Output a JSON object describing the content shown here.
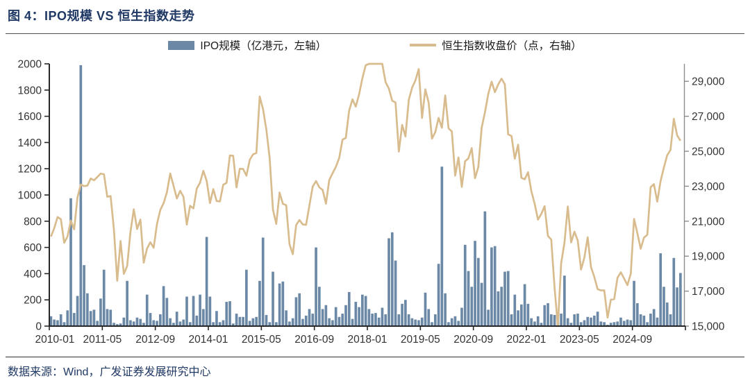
{
  "header": {
    "title": "图 4：IPO规模 VS 恒生指数走势"
  },
  "legend": {
    "bar_label": "IPO规模（亿港元，左轴）",
    "line_label": "恒生指数收盘价（点，右轴）"
  },
  "footer": {
    "source": "数据来源：Wind，广发证券发展研究中心"
  },
  "colors": {
    "bar": "#6B89A6",
    "line": "#D9BC8D",
    "title": "#1F3864",
    "axis_text": "#333333",
    "dark_axis_line": "#262626",
    "right_axis_line": "#8C8C8C"
  },
  "chart_data": {
    "type": "combo",
    "title": "图 4：IPO规模 VS 恒生指数走势",
    "start_month": "2010-01",
    "end_month": "2025-11",
    "x_tick_labels": [
      "2010-01",
      "2011-05",
      "2012-09",
      "2014-01",
      "2015-05",
      "2016-09",
      "2018-01",
      "2019-05",
      "2020-09",
      "2022-01",
      "2023-05",
      "2024-09"
    ],
    "x_label_interval_months": 16,
    "left_axis": {
      "title": "IPO规模（亿港元）",
      "min": 0,
      "max": 2000,
      "step": 200,
      "tick_labels": [
        "0",
        "200",
        "400",
        "600",
        "800",
        "1000",
        "1200",
        "1400",
        "1600",
        "1800",
        "2000"
      ]
    },
    "right_axis": {
      "title": "恒生指数收盘价（点）",
      "min": 15000,
      "max": 30000,
      "step": 2000,
      "tick_labels": [
        "15,000",
        "17,000",
        "19,000",
        "21,000",
        "23,000",
        "25,000",
        "27,000",
        "29,000"
      ]
    },
    "grid": false,
    "legend_position": "top",
    "series": [
      {
        "name": "IPO规模（亿港元，左轴）",
        "type": "bar",
        "axis": "left",
        "values": [
          75,
          50,
          45,
          90,
          30,
          120,
          975,
          100,
          230,
          1990,
          465,
          250,
          115,
          125,
          40,
          210,
          430,
          130,
          125,
          25,
          15,
          20,
          65,
          345,
          45,
          35,
          65,
          55,
          25,
          240,
          100,
          45,
          40,
          90,
          305,
          215,
          60,
          25,
          110,
          35,
          50,
          225,
          30,
          230,
          80,
          240,
          130,
          680,
          225,
          30,
          115,
          30,
          45,
          185,
          190,
          20,
          95,
          70,
          70,
          430,
          40,
          60,
          70,
          345,
          675,
          85,
          30,
          415,
          30,
          325,
          340,
          120,
          35,
          60,
          220,
          250,
          55,
          80,
          130,
          95,
          600,
          300,
          130,
          160,
          60,
          45,
          145,
          70,
          95,
          160,
          260,
          55,
          185,
          145,
          240,
          230,
          130,
          95,
          100,
          65,
          140,
          90,
          670,
          715,
          500,
          90,
          170,
          200,
          90,
          60,
          50,
          45,
          65,
          255,
          130,
          30,
          90,
          475,
          1216,
          250,
          30,
          60,
          75,
          40,
          140,
          620,
          420,
          300,
          650,
          520,
          330,
          875,
          125,
          600,
          610,
          265,
          300,
          415,
          420,
          90,
          240,
          120,
          165,
          320,
          170,
          60,
          35,
          75,
          25,
          160,
          175,
          90,
          85,
          35,
          95,
          385,
          60,
          25,
          90,
          95,
          30,
          45,
          70,
          65,
          80,
          110,
          35,
          30,
          10,
          25,
          30,
          35,
          65,
          40,
          50,
          45,
          345,
          175,
          90,
          80,
          30,
          95,
          130,
          65,
          555,
          300,
          180,
          90,
          520,
          295,
          405
        ]
      },
      {
        "name": "恒生指数收盘价（点，右轴）",
        "type": "line",
        "axis": "right",
        "values": [
          20122,
          20608,
          21239,
          21109,
          19765,
          20129,
          21030,
          20537,
          22358,
          23096,
          23007,
          23035,
          23447,
          23338,
          23528,
          23721,
          23684,
          22398,
          22440,
          20535,
          17592,
          19865,
          17989,
          18434,
          20390,
          21680,
          20556,
          21094,
          18629,
          19441,
          19796,
          19483,
          20840,
          21641,
          22030,
          22657,
          23729,
          23020,
          22300,
          22737,
          22392,
          20803,
          21884,
          21731,
          22860,
          23206,
          23881,
          23306,
          22035,
          22837,
          22151,
          22134,
          23082,
          23191,
          24757,
          24742,
          22933,
          23998,
          23987,
          23605,
          24507,
          24823,
          24901,
          28133,
          27424,
          26250,
          24636,
          21671,
          20846,
          22640,
          21996,
          21914,
          19683,
          19112,
          20777,
          21067,
          20815,
          20794,
          21891,
          22977,
          23297,
          22935,
          22790,
          22001,
          23361,
          23741,
          24112,
          24615,
          25661,
          25765,
          27324,
          27970,
          27554,
          28246,
          29177,
          29919,
          32887,
          30845,
          30093,
          30808,
          30469,
          28955,
          28583,
          27889,
          27789,
          24980,
          26507,
          25846,
          27942,
          28633,
          29051,
          29699,
          26901,
          28543,
          27778,
          25725,
          26092,
          26907,
          26346,
          28190,
          26313,
          26130,
          23603,
          24644,
          22961,
          24427,
          24595,
          25177,
          23459,
          24107,
          26341,
          27231,
          28284,
          28980,
          28378,
          28825,
          29152,
          28828,
          25961,
          25879,
          24576,
          25377,
          23475,
          23398,
          23802,
          22713,
          21997,
          21089,
          21415,
          21860,
          20157,
          19954,
          17223,
          14687,
          18597,
          19781,
          21842,
          19786,
          20400,
          19895,
          18234,
          18916,
          20079,
          18382,
          17810,
          17112,
          17043,
          17047,
          15485,
          16511,
          16541,
          17763,
          18080,
          17719,
          17345,
          17989,
          21134,
          20317,
          19424,
          20060,
          20225,
          22941,
          23120,
          22119,
          23290,
          24072,
          24773,
          25078,
          26856,
          25907,
          25600
        ]
      }
    ]
  }
}
